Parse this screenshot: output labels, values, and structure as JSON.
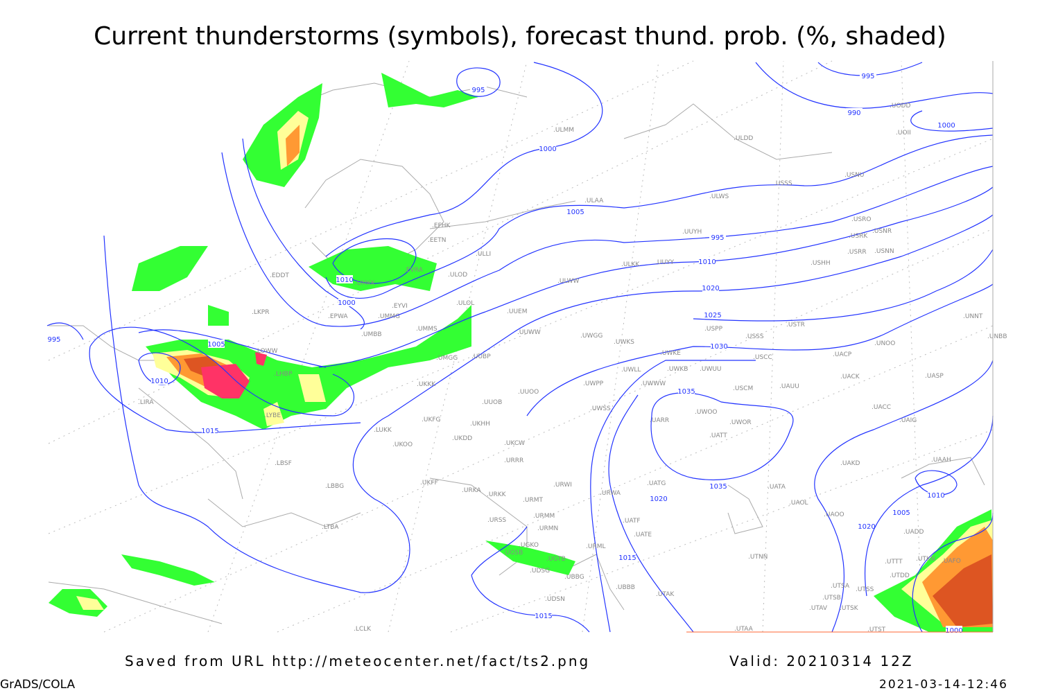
{
  "title": "Current thunderstorms (symbols), forecast thund. prob. (%, shaded)",
  "footer": {
    "saved": "Saved from URL http://meteocenter.net/fact/ts2.png",
    "valid": "Valid: 20210314 12Z",
    "software": "GrADS/COLA",
    "timestamp": "2021-03-14-12:46"
  },
  "colors": {
    "isobar": "#2233ff",
    "coast": "#999999",
    "prob_low": "#33ff33",
    "prob_mid": "#ffff99",
    "prob_high": "#ff9933",
    "prob_vhigh": "#dd5522",
    "current_storms": "#ff3366"
  },
  "isobar_labels": [
    "995",
    "1000",
    "1010",
    "1005",
    "1000",
    "995",
    "990",
    "995",
    "1000",
    "1010",
    "1005",
    "1010",
    "1015",
    "1020",
    "1025",
    "1030",
    "1035",
    "1035",
    "1010",
    "1015",
    "1020",
    "1015",
    "1020",
    "1005",
    "1000",
    "995"
  ],
  "stations": [
    "ULMM",
    "ULDD",
    "UODD",
    "UOII",
    "USNU",
    "USSS",
    "ULAA",
    "ULWS",
    "USRO",
    "USRK",
    "USNR",
    "USRR",
    "USNN",
    "EFHK",
    "EETN",
    "ULLI",
    "UUYH",
    "ULOD",
    "UMKK",
    "EVRA",
    "ULKK",
    "UUYY",
    "USHH",
    "ULWW",
    "EPWA",
    "UMMG",
    "EYVI",
    "ULOL",
    "UUEM",
    "USTR",
    "USPP",
    "EDDT",
    "LKPR",
    "UMMS",
    "UMBB",
    "UUWW",
    "UWGG",
    "UWKS",
    "USSS",
    "UNNT",
    "UNBB",
    "UNOO",
    "UWKE",
    "USCC",
    "UACP",
    "UMGG",
    "UUBP",
    "LOWW",
    "UWKB",
    "UWUU",
    "UWLL",
    "UACK",
    "UASP",
    "LHBP",
    "UKKK",
    "UUOO",
    "UWPP",
    "UWWW",
    "USCM",
    "UAUU",
    "UUOB",
    "LIRA",
    "UWSS",
    "UACC",
    "UAIG",
    "LYBE",
    "UWOO",
    "UWOR",
    "UARR",
    "UKHH",
    "UKDD",
    "UKFG",
    "UKOO",
    "LUKK",
    "UKCW",
    "UATT",
    "URRR",
    "LBSF",
    "UAKD",
    "UAAH",
    "LBBG",
    "UKFF",
    "URKA",
    "URKK",
    "URWI",
    "URWA",
    "UATG",
    "UATA",
    "URMT",
    "UAOL",
    "UAOO",
    "URSS",
    "URMM",
    "UATF",
    "UATE",
    "URMN",
    "UADD",
    "LTBA",
    "URML",
    "UGKO",
    "UGSB",
    "UGTB",
    "UTNN",
    "UTTT",
    "UTKN",
    "UAFO",
    "UBBG",
    "UDSG",
    "UTDD",
    "UBBB",
    "UTSA",
    "UTSS",
    "UDSN",
    "UTAK",
    "UTSB",
    "UTAV",
    "UTSK",
    "LCLK",
    "UTAA",
    "UTST"
  ]
}
